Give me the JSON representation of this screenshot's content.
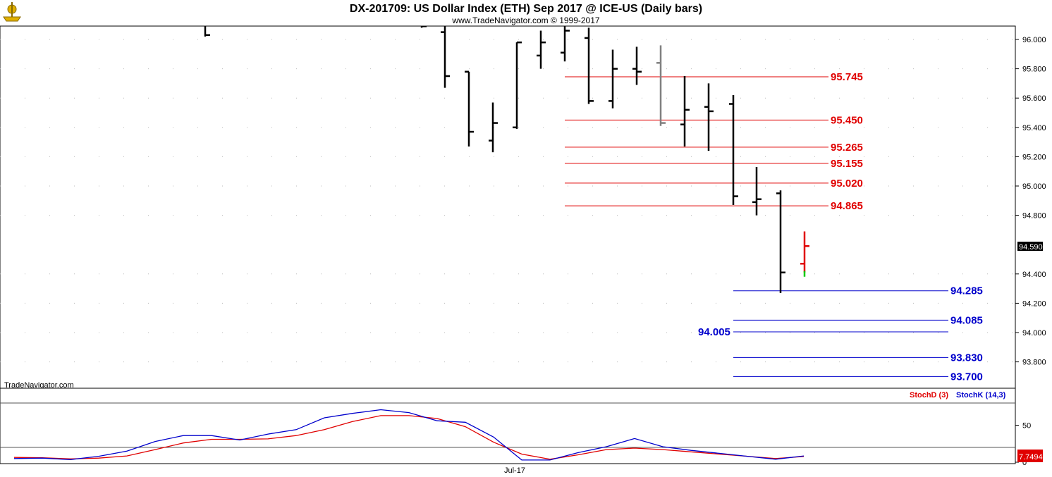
{
  "header": {
    "title": "DX-201709:  US Dollar Index (ETH) Sep 2017 @ ICE-US  (Daily bars)",
    "subtitle": "www.TradeNavigator.com © 1999-2017",
    "logo_icon": "anchor-logo-icon"
  },
  "watermark": "TradeNavigator.com",
  "colors": {
    "bars": "#000000",
    "gray_bar": "#808080",
    "resistance": "#e00000",
    "support": "#0000cc",
    "stoch_d": "#e00000",
    "stoch_k": "#0000cc",
    "last_bar": "#e00000",
    "last_bar_tick": "#00cc00"
  },
  "price_axis": {
    "ticks": [
      "96.000",
      "95.800",
      "95.600",
      "95.400",
      "95.200",
      "95.000",
      "94.800",
      "94.400",
      "94.200",
      "94.000",
      "93.800"
    ],
    "last_price": "94.590",
    "ylim": [
      93.6,
      96.08
    ]
  },
  "stoch_axis": {
    "ticks": [
      "50",
      "0"
    ],
    "last_value": "7.7494",
    "legend_d": "StochD (3)",
    "legend_k": "StochK (14,3)",
    "ylim": [
      0,
      100
    ]
  },
  "x_axis": {
    "label": "Jul-17"
  },
  "chart_data": {
    "type": "bar",
    "title": "DX-201709:  US Dollar Index (ETH) Sep 2017 @ ICE-US  (Daily bars)",
    "ohlc": [
      {
        "i": 0,
        "open": null,
        "high": 96.1,
        "low": 96.02,
        "close": 96.03
      },
      {
        "i": 9,
        "open": null,
        "high": 96.15,
        "low": 96.08,
        "close": 96.09
      },
      {
        "i": 10,
        "open": 96.05,
        "high": 96.12,
        "low": 95.67,
        "close": 95.75
      },
      {
        "i": 11,
        "open": 95.78,
        "high": 95.78,
        "low": 95.27,
        "close": 95.37
      },
      {
        "i": 12,
        "open": 95.31,
        "high": 95.57,
        "low": 95.23,
        "close": 95.43
      },
      {
        "i": 13,
        "open": 95.4,
        "high": 95.98,
        "low": 95.39,
        "close": 95.98
      },
      {
        "i": 14,
        "open": 95.89,
        "high": 96.06,
        "low": 95.8,
        "close": 95.98
      },
      {
        "i": 15,
        "open": 95.91,
        "high": 96.1,
        "low": 95.85,
        "close": 96.06
      },
      {
        "i": 16,
        "open": 96.01,
        "high": 96.08,
        "low": 95.56,
        "close": 95.58
      },
      {
        "i": 17,
        "open": 95.58,
        "high": 95.93,
        "low": 95.53,
        "close": 95.8
      },
      {
        "i": 18,
        "open": 95.8,
        "high": 95.95,
        "low": 95.69,
        "close": 95.78
      },
      {
        "i": 19,
        "open": 95.84,
        "high": 95.96,
        "low": 95.41,
        "close": 95.43,
        "gray": true
      },
      {
        "i": 20,
        "open": 95.42,
        "high": 95.75,
        "low": 95.27,
        "close": 95.52
      },
      {
        "i": 21,
        "open": 95.54,
        "high": 95.7,
        "low": 95.24,
        "close": 95.51
      },
      {
        "i": 22,
        "open": 95.56,
        "high": 95.62,
        "low": 94.87,
        "close": 94.93
      },
      {
        "i": 23,
        "open": 94.89,
        "high": 95.13,
        "low": 94.8,
        "close": 94.91
      },
      {
        "i": 24,
        "open": 94.95,
        "high": 94.97,
        "low": 94.27,
        "close": 94.41
      },
      {
        "i": 25,
        "open": 94.47,
        "high": 94.69,
        "low": 94.41,
        "close": 94.59,
        "last": true
      }
    ],
    "resistance_levels": [
      "95.745",
      "95.450",
      "95.265",
      "95.155",
      "95.020",
      "94.865"
    ],
    "support_levels": [
      "94.285",
      "94.085",
      "94.005",
      "93.830",
      "93.700"
    ],
    "stoch_d": [
      6.5,
      6.0,
      4.5,
      5.5,
      8.5,
      17,
      26,
      31,
      31,
      31.5,
      36,
      44,
      55,
      63,
      63,
      59,
      48,
      27,
      11,
      4,
      10,
      17,
      19,
      17,
      14,
      11,
      8,
      5,
      7.7494
    ],
    "stoch_k": [
      5,
      5.5,
      3.5,
      8,
      15,
      28,
      36,
      36,
      30,
      38,
      44,
      60,
      66,
      71,
      67,
      56,
      54,
      34,
      3,
      3,
      13,
      21,
      32,
      21,
      16,
      12,
      8,
      4,
      8.5
    ],
    "stoch_ref_lines": [
      20,
      80
    ]
  }
}
